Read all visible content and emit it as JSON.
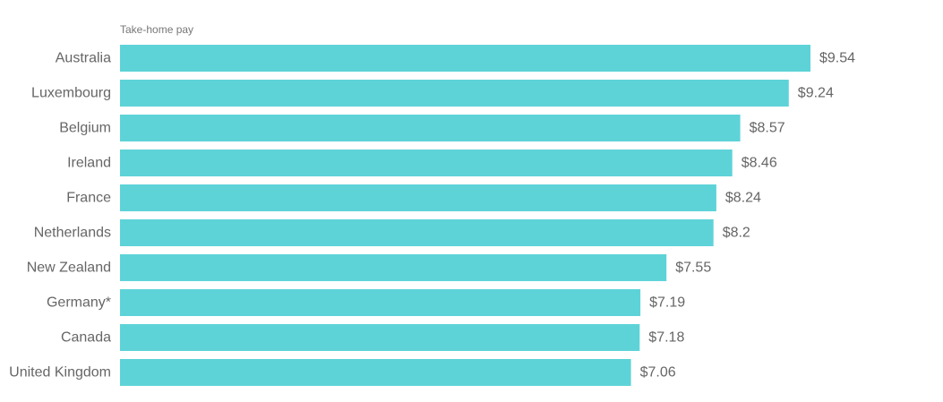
{
  "chart_data": {
    "type": "bar",
    "orientation": "horizontal",
    "series_label": "Take-home pay",
    "categories": [
      "Australia",
      "Luxembourg",
      "Belgium",
      "Ireland",
      "France",
      "Netherlands",
      "New Zealand",
      "Germany*",
      "Canada",
      "United Kingdom"
    ],
    "values": [
      9.54,
      9.24,
      8.57,
      8.46,
      8.24,
      8.2,
      7.55,
      7.19,
      7.18,
      7.06
    ],
    "value_labels": [
      "$9.54",
      "$9.24",
      "$8.57",
      "$8.46",
      "$8.24",
      "$8.2",
      "$7.55",
      "$7.19",
      "$7.18",
      "$7.06"
    ],
    "xlim": [
      0,
      9.54
    ],
    "grid": false,
    "legend": "none"
  },
  "colors": {
    "bar": "#5dd3d8",
    "category_text": "#666666",
    "value_text": "#666666",
    "header_text": "#777777"
  }
}
